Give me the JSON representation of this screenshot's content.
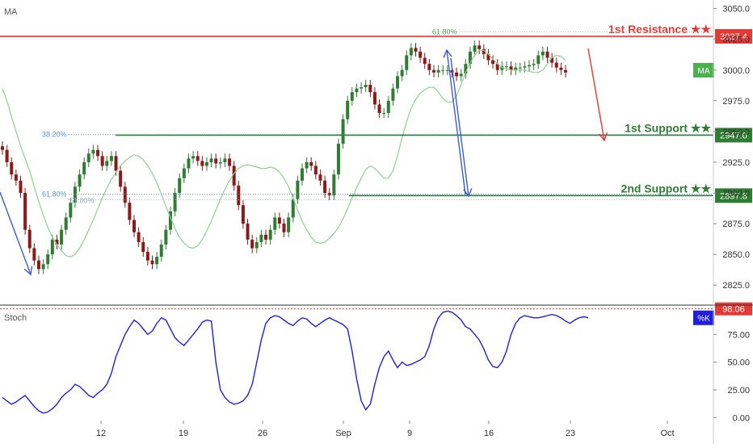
{
  "indicators": {
    "main_label": "MA",
    "sub_label": "Stoch",
    "ma_badge": "MA",
    "k_badge": "%K"
  },
  "colors": {
    "up": "#2e7d32",
    "down": "#8b1a1a",
    "ma": "#8ed08e",
    "resistance": "#e53935",
    "support": "#2e7d32",
    "stoch": "#1f1fdd",
    "fib": "#5a8fd6",
    "arrow_blue": "#3a5fcd"
  },
  "levels": [
    {
      "label": "1st Resistance ★★",
      "value": 3027.4,
      "tag": "3027.4",
      "color": "#e53935"
    },
    {
      "label": "1st Support ★★",
      "value": 2947.0,
      "tag": "2947.0",
      "color": "#2e7d32"
    },
    {
      "label": "2nd Support ★★",
      "value": 2897.8,
      "tag": "2897.8",
      "color": "#2e7d32"
    }
  ],
  "fib_labels": [
    "61.80%",
    "38.20%",
    "61.80%",
    "61.80%"
  ],
  "chart_data": [
    {
      "type": "candlestick",
      "title": "",
      "x_ticks": [
        "12",
        "19",
        "26",
        "Sep",
        "9",
        "16",
        "23",
        "Oct"
      ],
      "y_ticks": [
        "3050.0",
        "3025.0",
        "3000.0",
        "2975.0",
        "2950.0",
        "2925.0",
        "2900.0",
        "2875.0",
        "2850.0",
        "2825.0"
      ],
      "ylim": [
        2810,
        3057
      ],
      "grid": false,
      "series": [
        {
          "name": "MA",
          "values": [
            2985,
            2975,
            2962,
            2950,
            2938,
            2928,
            2918,
            2905,
            2893,
            2882,
            2872,
            2864,
            2858,
            2853,
            2849,
            2848,
            2850,
            2855,
            2862,
            2870,
            2878,
            2887,
            2896,
            2904,
            2911,
            2917,
            2922,
            2926,
            2929,
            2931,
            2930,
            2927,
            2922,
            2916,
            2908,
            2899,
            2889,
            2880,
            2871,
            2864,
            2859,
            2856,
            2855,
            2857,
            2862,
            2869,
            2877,
            2886,
            2895,
            2903,
            2910,
            2916,
            2920,
            2922,
            2923,
            2922,
            2921,
            2920,
            2920,
            2921,
            2920,
            2917,
            2912,
            2905,
            2896,
            2886,
            2877,
            2870,
            2864,
            2860,
            2859,
            2860,
            2863,
            2867,
            2872,
            2879,
            2887,
            2896,
            2904,
            2912,
            2919,
            2922,
            2920,
            2916,
            2912,
            2912,
            2918,
            2930,
            2945,
            2958,
            2969,
            2976,
            2981,
            2984,
            2986,
            2986,
            2982,
            2977,
            2974,
            2974,
            2979,
            2988,
            2998,
            3006,
            3012,
            3016,
            3016,
            3013,
            3009,
            3005,
            3002,
            3001,
            3000,
            3000,
            3000,
            3000,
            2999,
            2998,
            2998,
            3000,
            3005,
            3010,
            3012,
            3011,
            3008
          ]
        }
      ]
    },
    {
      "type": "line",
      "title": "",
      "ylabel": "",
      "y_ticks": [
        "75.00",
        "50.00",
        "25.00",
        "0.00"
      ],
      "ylim": [
        -2,
        100
      ],
      "reference_line": {
        "value": 98.06,
        "label": "98.06"
      },
      "series": [
        {
          "name": "%K",
          "values": [
            18,
            15,
            12,
            14,
            17,
            20,
            15,
            10,
            6,
            4,
            5,
            8,
            12,
            18,
            22,
            25,
            30,
            28,
            24,
            20,
            18,
            22,
            25,
            30,
            40,
            55,
            65,
            75,
            82,
            88,
            85,
            80,
            75,
            78,
            85,
            90,
            88,
            80,
            72,
            68,
            65,
            70,
            75,
            80,
            86,
            88,
            87,
            50,
            25,
            18,
            14,
            12,
            13,
            15,
            20,
            30,
            50,
            70,
            85,
            90,
            92,
            91,
            88,
            85,
            83,
            87,
            90,
            89,
            85,
            82,
            85,
            88,
            90,
            88,
            86,
            84,
            80,
            60,
            35,
            15,
            7,
            12,
            30,
            45,
            55,
            60,
            52,
            45,
            50,
            47,
            48,
            50,
            52,
            55,
            65,
            80,
            90,
            95,
            96,
            95,
            92,
            88,
            82,
            80,
            75,
            70,
            62,
            52,
            46,
            45,
            50,
            60,
            75,
            85,
            90,
            92,
            91,
            90,
            90,
            91,
            92,
            93,
            92,
            90,
            87,
            85,
            88,
            90,
            91,
            90
          ]
        }
      ]
    }
  ]
}
